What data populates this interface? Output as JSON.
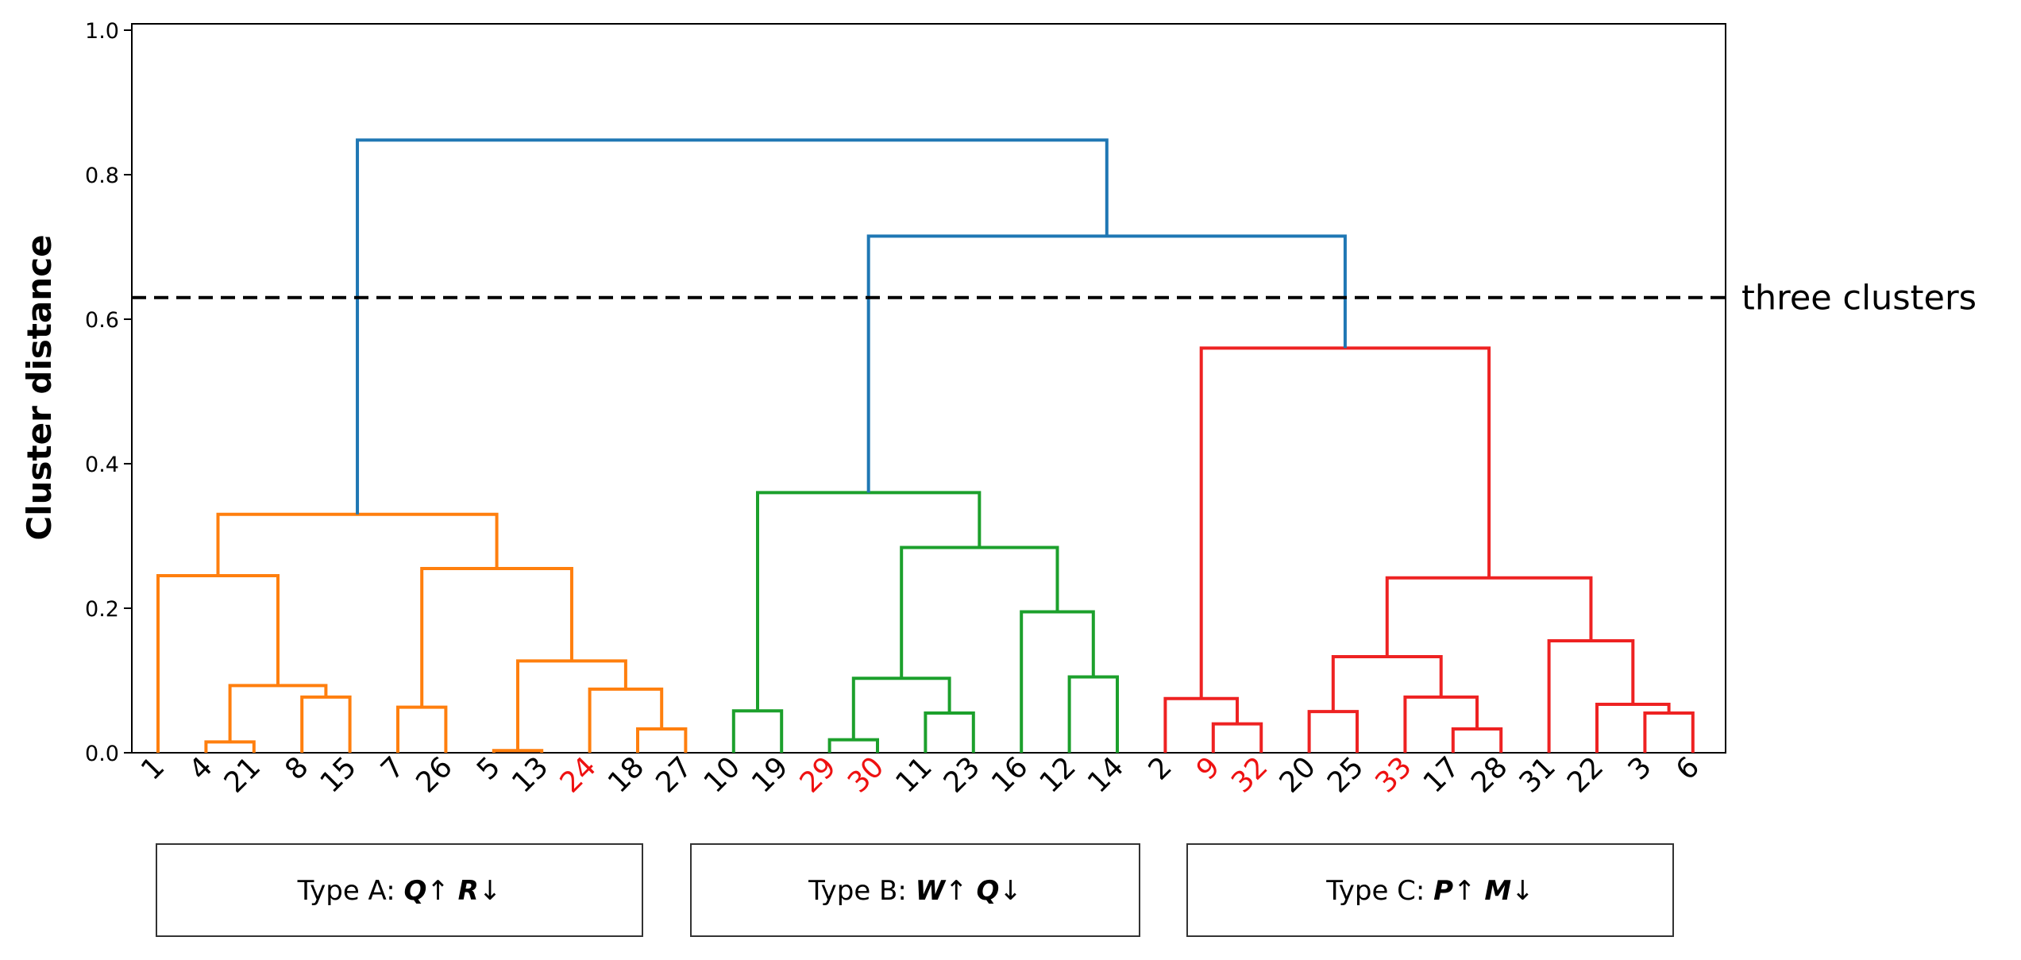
{
  "chart_data": {
    "type": "dendrogram",
    "title": "",
    "xlabel": "",
    "ylabel": "Cluster distance",
    "ylim": [
      0,
      1.0
    ],
    "yticks": [
      "0.0",
      "0.2",
      "0.4",
      "0.6",
      "0.8",
      "1.0"
    ],
    "threshold": {
      "value": 0.63,
      "label": "three clusters",
      "style": "dashed"
    },
    "colors": {
      "A": "#ff7f0e",
      "B": "#1ca02c",
      "C": "#ee2222",
      "root": "#1f77b4",
      "leaf_default": "#000000",
      "leaf_highlight": "#ee1111",
      "axis": "#000000"
    },
    "leaves": [
      {
        "label": "1",
        "highlight": false
      },
      {
        "label": "4",
        "highlight": false
      },
      {
        "label": "21",
        "highlight": false
      },
      {
        "label": "8",
        "highlight": false
      },
      {
        "label": "15",
        "highlight": false
      },
      {
        "label": "7",
        "highlight": false
      },
      {
        "label": "26",
        "highlight": false
      },
      {
        "label": "5",
        "highlight": false
      },
      {
        "label": "13",
        "highlight": false
      },
      {
        "label": "24",
        "highlight": true
      },
      {
        "label": "18",
        "highlight": false
      },
      {
        "label": "27",
        "highlight": false
      },
      {
        "label": "10",
        "highlight": false
      },
      {
        "label": "19",
        "highlight": false
      },
      {
        "label": "29",
        "highlight": true
      },
      {
        "label": "30",
        "highlight": true
      },
      {
        "label": "11",
        "highlight": false
      },
      {
        "label": "23",
        "highlight": false
      },
      {
        "label": "16",
        "highlight": false
      },
      {
        "label": "12",
        "highlight": false
      },
      {
        "label": "14",
        "highlight": false
      },
      {
        "label": "2",
        "highlight": false
      },
      {
        "label": "9",
        "highlight": true
      },
      {
        "label": "32",
        "highlight": true
      },
      {
        "label": "20",
        "highlight": false
      },
      {
        "label": "25",
        "highlight": false
      },
      {
        "label": "33",
        "highlight": true
      },
      {
        "label": "17",
        "highlight": false
      },
      {
        "label": "28",
        "highlight": false
      },
      {
        "label": "31",
        "highlight": false
      },
      {
        "label": "22",
        "highlight": false
      },
      {
        "label": "3",
        "highlight": false
      },
      {
        "label": "6",
        "highlight": false
      }
    ],
    "merges": [
      {
        "id": "a1",
        "left": 1,
        "right": 2,
        "height": 0.015,
        "cluster": "A"
      },
      {
        "id": "a2",
        "left": 3,
        "right": 4,
        "height": 0.077,
        "cluster": "A"
      },
      {
        "id": "a3",
        "left": "a1",
        "right": "a2",
        "height": 0.093,
        "cluster": "A"
      },
      {
        "id": "a4",
        "left": 0,
        "right": "a3",
        "height": 0.245,
        "cluster": "A"
      },
      {
        "id": "a5",
        "left": 5,
        "right": 6,
        "height": 0.063,
        "cluster": "A"
      },
      {
        "id": "a6",
        "left": 7,
        "right": 8,
        "height": 0.003,
        "cluster": "A"
      },
      {
        "id": "a7",
        "left": 10,
        "right": 11,
        "height": 0.033,
        "cluster": "A"
      },
      {
        "id": "a8",
        "left": 9,
        "right": "a7",
        "height": 0.088,
        "cluster": "A"
      },
      {
        "id": "a9",
        "left": "a6",
        "right": "a8",
        "height": 0.127,
        "cluster": "A"
      },
      {
        "id": "a10",
        "left": "a5",
        "right": "a9",
        "height": 0.255,
        "cluster": "A"
      },
      {
        "id": "a11",
        "left": "a4",
        "right": "a10",
        "height": 0.33,
        "cluster": "A"
      },
      {
        "id": "b1",
        "left": 12,
        "right": 13,
        "height": 0.058,
        "cluster": "B"
      },
      {
        "id": "b2",
        "left": 14,
        "right": 15,
        "height": 0.018,
        "cluster": "B"
      },
      {
        "id": "b3",
        "left": 16,
        "right": 17,
        "height": 0.055,
        "cluster": "B"
      },
      {
        "id": "b4",
        "left": "b2",
        "right": "b3",
        "height": 0.103,
        "cluster": "B"
      },
      {
        "id": "b5",
        "left": 19,
        "right": 20,
        "height": 0.105,
        "cluster": "B"
      },
      {
        "id": "b6",
        "left": 18,
        "right": "b5",
        "height": 0.195,
        "cluster": "B"
      },
      {
        "id": "b7",
        "left": "b4",
        "right": "b6",
        "height": 0.284,
        "cluster": "B"
      },
      {
        "id": "b8",
        "left": "b1",
        "right": "b7",
        "height": 0.36,
        "cluster": "B"
      },
      {
        "id": "c1",
        "left": 22,
        "right": 23,
        "height": 0.04,
        "cluster": "C"
      },
      {
        "id": "c2",
        "left": 21,
        "right": "c1",
        "height": 0.075,
        "cluster": "C"
      },
      {
        "id": "c3",
        "left": 24,
        "right": 25,
        "height": 0.057,
        "cluster": "C"
      },
      {
        "id": "c4",
        "left": 27,
        "right": 28,
        "height": 0.033,
        "cluster": "C"
      },
      {
        "id": "c5",
        "left": 26,
        "right": "c4",
        "height": 0.077,
        "cluster": "C"
      },
      {
        "id": "c6",
        "left": "c3",
        "right": "c5",
        "height": 0.133,
        "cluster": "C"
      },
      {
        "id": "c7",
        "left": 31,
        "right": 32,
        "height": 0.055,
        "cluster": "C"
      },
      {
        "id": "c8",
        "left": 30,
        "right": "c7",
        "height": 0.067,
        "cluster": "C"
      },
      {
        "id": "c9",
        "left": 29,
        "right": "c8",
        "height": 0.155,
        "cluster": "C"
      },
      {
        "id": "c10",
        "left": "c6",
        "right": "c9",
        "height": 0.242,
        "cluster": "C"
      },
      {
        "id": "c11",
        "left": "c2",
        "right": "c10",
        "height": 0.56,
        "cluster": "C"
      },
      {
        "id": "r1",
        "left": "b8",
        "right": "c11",
        "height": 0.715,
        "cluster": "root"
      },
      {
        "id": "r2",
        "left": "a11",
        "right": "r1",
        "height": 0.848,
        "cluster": "root"
      }
    ],
    "cluster_boxes": [
      {
        "name": "type-a",
        "prefix": "Type A: ",
        "sym1": "Q",
        "arrow1": "↑",
        "sym2": "R",
        "arrow2": "↓"
      },
      {
        "name": "type-b",
        "prefix": "Type B: ",
        "sym1": "W",
        "arrow1": "↑",
        "sym2": "Q",
        "arrow2": "↓"
      },
      {
        "name": "type-c",
        "prefix": "Type C: ",
        "sym1": "P",
        "arrow1": "↑",
        "sym2": "M",
        "arrow2": "↓"
      }
    ]
  }
}
